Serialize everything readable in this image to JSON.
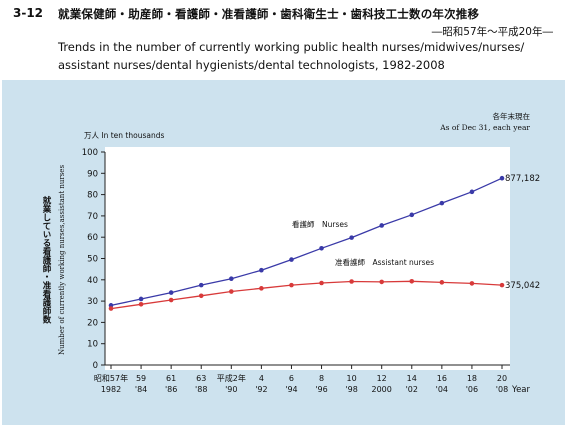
{
  "header": {
    "figure_number": "3-12",
    "title_ja": "就業保健師・助産師・看護師・准看護師・歯科衛生士・歯科技工士数の年次推移",
    "period_ja": "―昭和57年～平成20年―",
    "title_en_line1": "Trends in the number of currently working public health nurses/midwives/nurses/",
    "title_en_line2": "assistant nurses/dental hygienists/dental technologists, 1982-2008"
  },
  "chart_data": {
    "type": "line",
    "unit_label": "万人 In ten thousands",
    "note_ja": "各年末現在",
    "note_en": "As of Dec 31, each year",
    "ylabel_ja": "就業している看護師・准看護師数",
    "ylabel_en": "Number of currently working nurses,assistant nurses",
    "xlabel": "Year",
    "ylim": [
      0,
      100
    ],
    "yticks": [
      0,
      10,
      20,
      30,
      40,
      50,
      60,
      70,
      80,
      90,
      100
    ],
    "x": [
      1982,
      1984,
      1986,
      1988,
      1990,
      1992,
      1994,
      1996,
      1998,
      2000,
      2002,
      2004,
      2006,
      2008
    ],
    "x_tick_labels_top": [
      "昭和57年",
      "59",
      "61",
      "63",
      "平成2年",
      "4",
      "6",
      "8",
      "10",
      "12",
      "14",
      "16",
      "18",
      "20"
    ],
    "x_tick_labels_bottom": [
      "1982",
      "'84",
      "'86",
      "'88",
      "'90",
      "'92",
      "'94",
      "'96",
      "'98",
      "2000",
      "'02",
      "'04",
      "'06",
      "'08"
    ],
    "series": [
      {
        "name": "看護師　Nurses",
        "color": "#3a3aa8",
        "values": [
          28.0,
          31.0,
          34.0,
          37.5,
          40.5,
          44.5,
          49.5,
          54.8,
          59.8,
          65.5,
          70.5,
          76.0,
          81.3,
          87.7
        ],
        "end_label": "877,182"
      },
      {
        "name": "准看護師　Assistant nurses",
        "color": "#d83a3a",
        "values": [
          26.5,
          28.5,
          30.5,
          32.5,
          34.5,
          36.0,
          37.5,
          38.5,
          39.2,
          39.0,
          39.3,
          38.8,
          38.3,
          37.5
        ],
        "end_label": "375,042"
      }
    ]
  }
}
